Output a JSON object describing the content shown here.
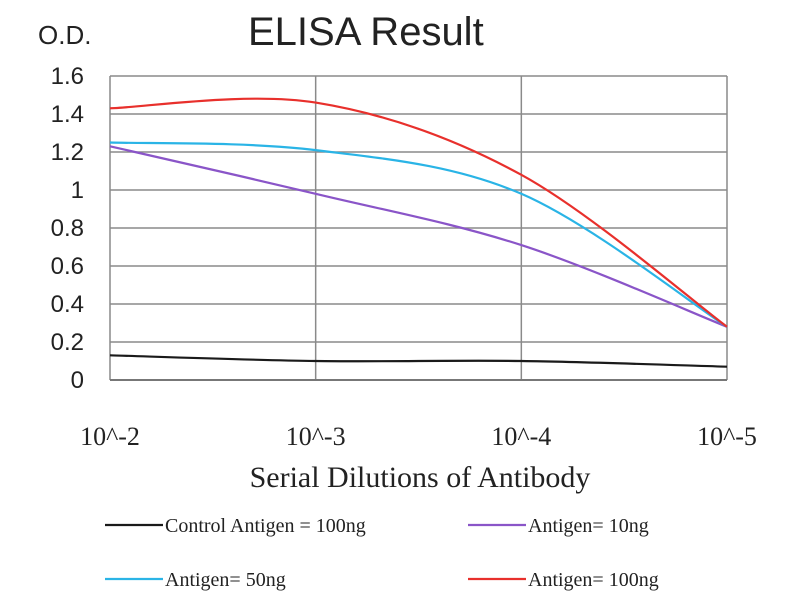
{
  "chart_data": {
    "type": "line",
    "title": "ELISA Result",
    "ylabel": "O.D.",
    "xlabel": "Serial Dilutions of Antibody",
    "x_scale": "log",
    "categories": [
      "10^-2",
      "10^-3",
      "10^-4",
      "10^-5"
    ],
    "ylim": [
      0,
      1.6
    ],
    "yticks": [
      "0",
      "0.2",
      "0.4",
      "0.6",
      "0.8",
      "1",
      "1.2",
      "1.4",
      "1.6"
    ],
    "grid": true,
    "legend_position": "bottom",
    "series": [
      {
        "name": "Control Antigen = 100ng",
        "color": "#1a1a1a",
        "values": [
          0.13,
          0.1,
          0.1,
          0.07
        ]
      },
      {
        "name": "Antigen= 10ng",
        "color": "#8a55c8",
        "values": [
          1.23,
          0.98,
          0.71,
          0.28
        ]
      },
      {
        "name": "Antigen= 50ng",
        "color": "#2ab4e6",
        "values": [
          1.25,
          1.21,
          0.98,
          0.28
        ]
      },
      {
        "name": "Antigen= 100ng",
        "color": "#e8302c",
        "values": [
          1.43,
          1.46,
          1.08,
          0.28
        ]
      }
    ]
  }
}
